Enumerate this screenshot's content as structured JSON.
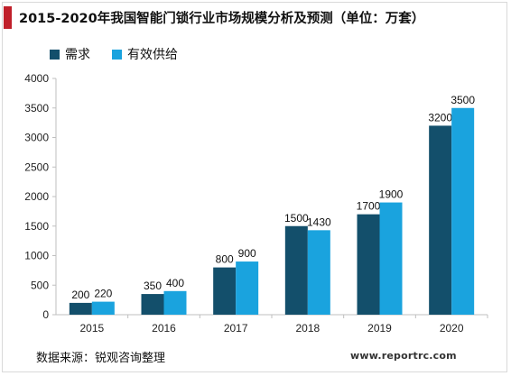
{
  "title": "2015-2020年我国智能门锁行业市场规模分析及预测（单位：万套）",
  "source": "数据来源：锐观咨询整理",
  "watermark": "www.reportrc.com",
  "colors": {
    "accent": "#c0202a",
    "demand": "#134f6b",
    "supply": "#1aa3de",
    "axis": "#bfbfbf"
  },
  "chart_data": {
    "type": "bar",
    "title": "2015-2020年我国智能门锁行业市场规模分析及预测（单位：万套）",
    "categories": [
      "2015",
      "2016",
      "2017",
      "2018",
      "2019",
      "2020"
    ],
    "series": [
      {
        "name": "需求",
        "values": [
          200,
          350,
          800,
          1500,
          1700,
          3200
        ]
      },
      {
        "name": "有效供给",
        "values": [
          220,
          400,
          900,
          1430,
          1900,
          3500
        ]
      }
    ],
    "ylim": [
      0,
      4000
    ],
    "yticks": [
      0,
      500,
      1000,
      1500,
      2000,
      2500,
      3000,
      3500,
      4000
    ],
    "grid": false,
    "legend_position": "top-left"
  }
}
